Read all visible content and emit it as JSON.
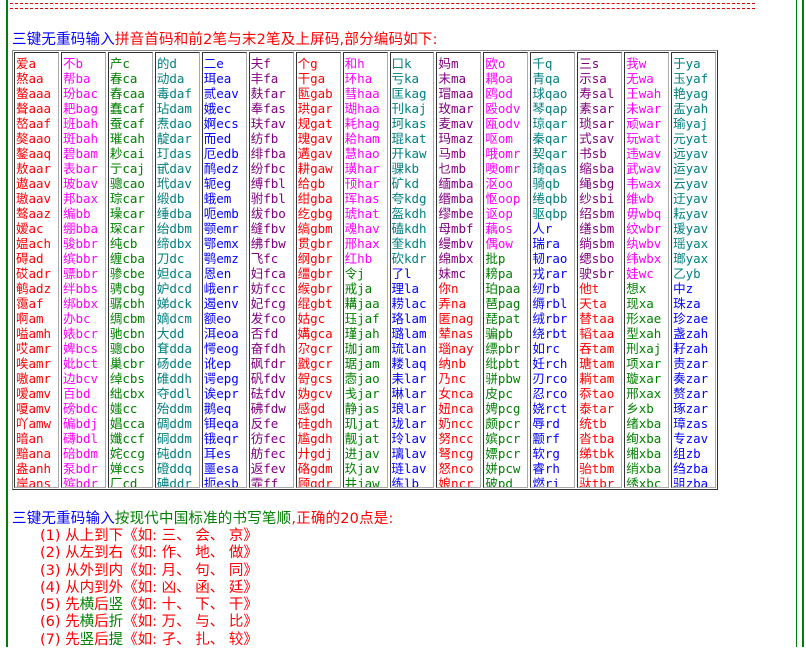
{
  "colors": {
    "a": "#ff0000",
    "b": "#ff00ff",
    "c": "#008000",
    "d": "#008080",
    "e": "#0000ff",
    "f": "#800080",
    "g": "#ff0000",
    "h": "#ff00ff",
    "j": "#008000",
    "k": "#008080",
    "l": "#0000ff",
    "m": "#800080",
    "n": "#ff0000",
    "o": "#ff00ff",
    "p": "#008000",
    "q": "#008080",
    "r": "#0000ff",
    "s": "#800080",
    "t": "#ff0000",
    "w": "#ff00ff",
    "x": "#008000",
    "y": "#008080",
    "z": "#0000ff"
  },
  "heading1": {
    "part1": "三键无重码输入",
    "part2": "拼音首码和前2笔与末2笔及上屏码,部分编码如下:"
  },
  "columns": [
    [
      "爱a",
      "熬aa",
      "螯aaa",
      "聱aaa",
      "嶅aaf",
      "獒aao",
      "鏊aaq",
      "敖aar",
      "遨aav",
      "璈aav",
      "骜aaz",
      "嫒ac",
      "媪ach",
      "碍ad",
      "砹adr",
      "鹌adz",
      "霭af",
      "啊am",
      "嗌amh",
      "哎amr",
      "唉amr",
      "嗷amr",
      "嗳amv",
      "嗄amv",
      "吖amw",
      "暗an",
      "黯ana",
      "盎anh",
      "岸ans"
    ],
    [
      "不b",
      "帮ba",
      "玢bac",
      "耙bag",
      "班bah",
      "斑bah",
      "碧bam",
      "表bar",
      "玻bav",
      "邦bax",
      "编bb",
      "绷bba",
      "骏bbr",
      "缤bbr",
      "骠bbr",
      "绊bbs",
      "绑bbx",
      "办bc",
      "婊bcr",
      "婢bcs",
      "妣bct",
      "边bcv",
      "百bd",
      "磅bdc",
      "碥bdj",
      "礴bdl",
      "碚bdm",
      "泵bdr",
      "殡bdr"
    ],
    [
      "产c",
      "春ca",
      "舂caa",
      "蠢caf",
      "蚕caf",
      "璀cah",
      "耖cai",
      "亍caj",
      "骢cao",
      "琮car",
      "璪car",
      "琛car",
      "纯cb",
      "缠cba",
      "骖cbe",
      "骋cbg",
      "骣cbh",
      "绸cbm",
      "驰cbn",
      "骢cbo",
      "巢cbr",
      "绰cbs",
      "绌cbx",
      "媸cc",
      "娼cca",
      "孅ccf",
      "姹ccg",
      "婵ccs",
      "厂cd"
    ],
    [
      "的d",
      "动da",
      "毒daf",
      "玷dam",
      "焘dao",
      "靛dar",
      "玎das",
      "甙dav",
      "玳dav",
      "缎db",
      "缍dba",
      "绐dbm",
      "缔dbx",
      "刀dc",
      "妲dca",
      "妒dcd",
      "娣dck",
      "嫡dcm",
      "大dd",
      "耷dda",
      "砀dde",
      "碓ddh",
      "夺ddl",
      "殆ddm",
      "碉ddm",
      "硐ddm",
      "砘ddn",
      "磴ddq",
      "碘ddr"
    ],
    [
      "二e",
      "珥ea",
      "贰eav",
      "娥ec",
      "婀ecs",
      "而ed",
      "厄edb",
      "鸸edz",
      "轭eg",
      "蛾em",
      "呃emb",
      "颚emr",
      "鄂emx",
      "鹗emz",
      "恩en",
      "峨enr",
      "遏env",
      "额eo",
      "洱eoa",
      "愕eog",
      "讹ep",
      "谔epg",
      "诶epr",
      "鹅eq",
      "铒eqa",
      "锇eqr",
      "耳es",
      "噩esa",
      "扼esb"
    ],
    [
      "夫f",
      "丰fa",
      "麸far",
      "奉fas",
      "玞fav",
      "纺fb",
      "绯fba",
      "纷fbc",
      "缚fbl",
      "驸fbl",
      "绂fbo",
      "缝fbv",
      "绋fbw",
      "飞fc",
      "妇fca",
      "妨fcc",
      "妃fcg",
      "发fco",
      "否fd",
      "奋fdh",
      "砜fdr",
      "矾fdv",
      "砝fdv",
      "砩fdw",
      "反fe",
      "彷fec",
      "舫fec",
      "返fev",
      "霏ff"
    ],
    [
      "个g",
      "干ga",
      "匦gab",
      "珙gar",
      "规gat",
      "瑰gav",
      "遘gav",
      "耕gaw",
      "给gb",
      "绀gba",
      "纥gbg",
      "缟gbm",
      "贯gbr",
      "纲gbr",
      "缰gbr",
      "缑gbr",
      "绲gbt",
      "姑gc",
      "媾gca",
      "尕gcr",
      "戤gcr",
      "哿gcs",
      "妫gcv",
      "感gd",
      "硅gdh",
      "尴gdh",
      "廾gdj",
      "硌gdm",
      "顾gdr"
    ],
    [
      "和h",
      "环ha",
      "彗haa",
      "瑚haa",
      "耗hag",
      "耠ham",
      "慧hao",
      "璜har",
      "顸har",
      "珲has",
      "琥hat",
      "魂hav",
      "邢hax",
      "红hb",
      "令j",
      "戒ja",
      "耩jaa",
      "珏jaf",
      "瑾jah",
      "珈jam",
      "琚jam",
      "悫jao",
      "戋jar",
      "静jas",
      "玑jat",
      "靓jat",
      "进jav",
      "玖jav",
      "井jaw"
    ],
    [
      "口k",
      "亏ka",
      "匡kag",
      "刊kaj",
      "珂kas",
      "琨kat",
      "开kaw",
      "骒kb",
      "矿kd",
      "夸kdg",
      "盔kdh",
      "磕kdh",
      "奎kdh",
      "砍kdr",
      "了l",
      "理la",
      "耢lac",
      "珞lam",
      "璐lam",
      "琉lan",
      "耧laq",
      "耒lar",
      "琳lar",
      "琅lar",
      "珑lar",
      "玲lav",
      "璃lav",
      "琏lav",
      "练lb"
    ],
    [
      "妈m",
      "末ma",
      "瑁maa",
      "玫mar",
      "麦mav",
      "玛maz",
      "马mb",
      "乜mb",
      "缅mba",
      "缗mba",
      "缪mbe",
      "母mbf",
      "缦mbv",
      "绵mbx",
      "妹mc",
      "你n",
      "弄na",
      "匿nag",
      "辇nas",
      "瑙nay",
      "纳nb",
      "乃nc",
      "女nca",
      "妞nca",
      "奶ncc",
      "努ncc",
      "弩ncg",
      "怒nco",
      "娘ncr"
    ],
    [
      "欧o",
      "耦oa",
      "鸥od",
      "殴odv",
      "瓯odv",
      "呕om",
      "哦omr",
      "噢omr",
      "沤oo",
      "怄oop",
      "讴op",
      "藕os",
      "偶ow",
      "批p",
      "耪pa",
      "珀paa",
      "琶pag",
      "琵pat",
      "骗pb",
      "缥pbr",
      "纰pbt",
      "骈pbw",
      "皮pc",
      "娉pcg",
      "颇pcr",
      "嫔pcr",
      "嫖pcr",
      "姘pcw",
      "破pd"
    ],
    [
      "千q",
      "青qa",
      "球qao",
      "琴qap",
      "琼qar",
      "秦qar",
      "契qar",
      "琦qas",
      "骑qb",
      "绻qbb",
      "驱qbp",
      "人r",
      "瑞ra",
      "韧rao",
      "戎rar",
      "纫rb",
      "缛rbl",
      "绒rbr",
      "绕rbt",
      "如rc",
      "妊rch",
      "刃rco",
      "忍rco",
      "娆rct",
      "辱rd",
      "颥rf",
      "软rg",
      "睿rh",
      "燃ri"
    ],
    [
      "三s",
      "示sa",
      "寿sal",
      "素sar",
      "琐sar",
      "式sav",
      "书sb",
      "缩sba",
      "绳sbg",
      "纱sbi",
      "绍sbm",
      "缮sbm",
      "绱sbm",
      "缌sbo",
      "驶sbr",
      "他t",
      "天ta",
      "替taa",
      "韬taa",
      "吞tam",
      "瑭tam",
      "耥tam",
      "忝tao",
      "泰tar",
      "统tb",
      "沓tba",
      "绨tbk",
      "骀tbm",
      "驮tbr"
    ],
    [
      "我w",
      "无wa",
      "王wah",
      "未war",
      "顽war",
      "玩wat",
      "违wav",
      "武wav",
      "韦wax",
      "维wb",
      "毋wbq",
      "纹wbr",
      "纨wbv",
      "纬wbx",
      "娃wc",
      "想x",
      "现xa",
      "形xae",
      "型xah",
      "刑xaj",
      "项xar",
      "璇xar",
      "邢xax",
      "乡xb",
      "绪xba",
      "绚xba",
      "缃xba",
      "绡xba",
      "绣xbc"
    ],
    [
      "于ya",
      "玉yaf",
      "艳yag",
      "盂yah",
      "瑜yaj",
      "元yat",
      "远yav",
      "运yav",
      "云yav",
      "迂yav",
      "耘yav",
      "瑗yav",
      "瑶yax",
      "瑯yax",
      "乙yb",
      "中z",
      "珠za",
      "珍zae",
      "盏zah",
      "耔zah",
      "责zar",
      "奏zar",
      "赘zar",
      "琢zar",
      "璋zas",
      "专zav",
      "组zb",
      "绉zba",
      "驵zba"
    ]
  ],
  "heading2": {
    "part1": "三键无重码输入",
    "part2": "按现代中国标准的书写笔顺",
    "part3": ",正确的20点是:"
  },
  "rules": [
    {
      "num": "(1) ",
      "a": "从上到下",
      "b": "",
      "c": "",
      "d": "",
      "ex": "《如: 三、 会、 京》"
    },
    {
      "num": "(2) ",
      "a": "从左到右",
      "b": "",
      "c": "",
      "d": "",
      "ex": "《如: 作、 地、 做》"
    },
    {
      "num": "(3) ",
      "a": "从外到内",
      "b": "",
      "c": "",
      "d": "",
      "ex": "《如: 月、 句、 同》"
    },
    {
      "num": "(4) ",
      "a": "从内到外",
      "b": "",
      "c": "",
      "d": "",
      "ex": "《如: 凶、 函、 廷》"
    },
    {
      "num": "(5) ",
      "a": "先",
      "b": "横",
      "c": "后",
      "d": "竖",
      "ex": "《如: 十、 下、 干》"
    },
    {
      "num": "(6) ",
      "a": "先",
      "b": "横",
      "c": "后",
      "d": "折",
      "ex": "《如: 万、 与、 比》"
    },
    {
      "num": "(7) ",
      "a": "先",
      "b": "竖",
      "c": "后",
      "d": "提",
      "ex": "《如: 孑、 扎、 较》"
    }
  ]
}
